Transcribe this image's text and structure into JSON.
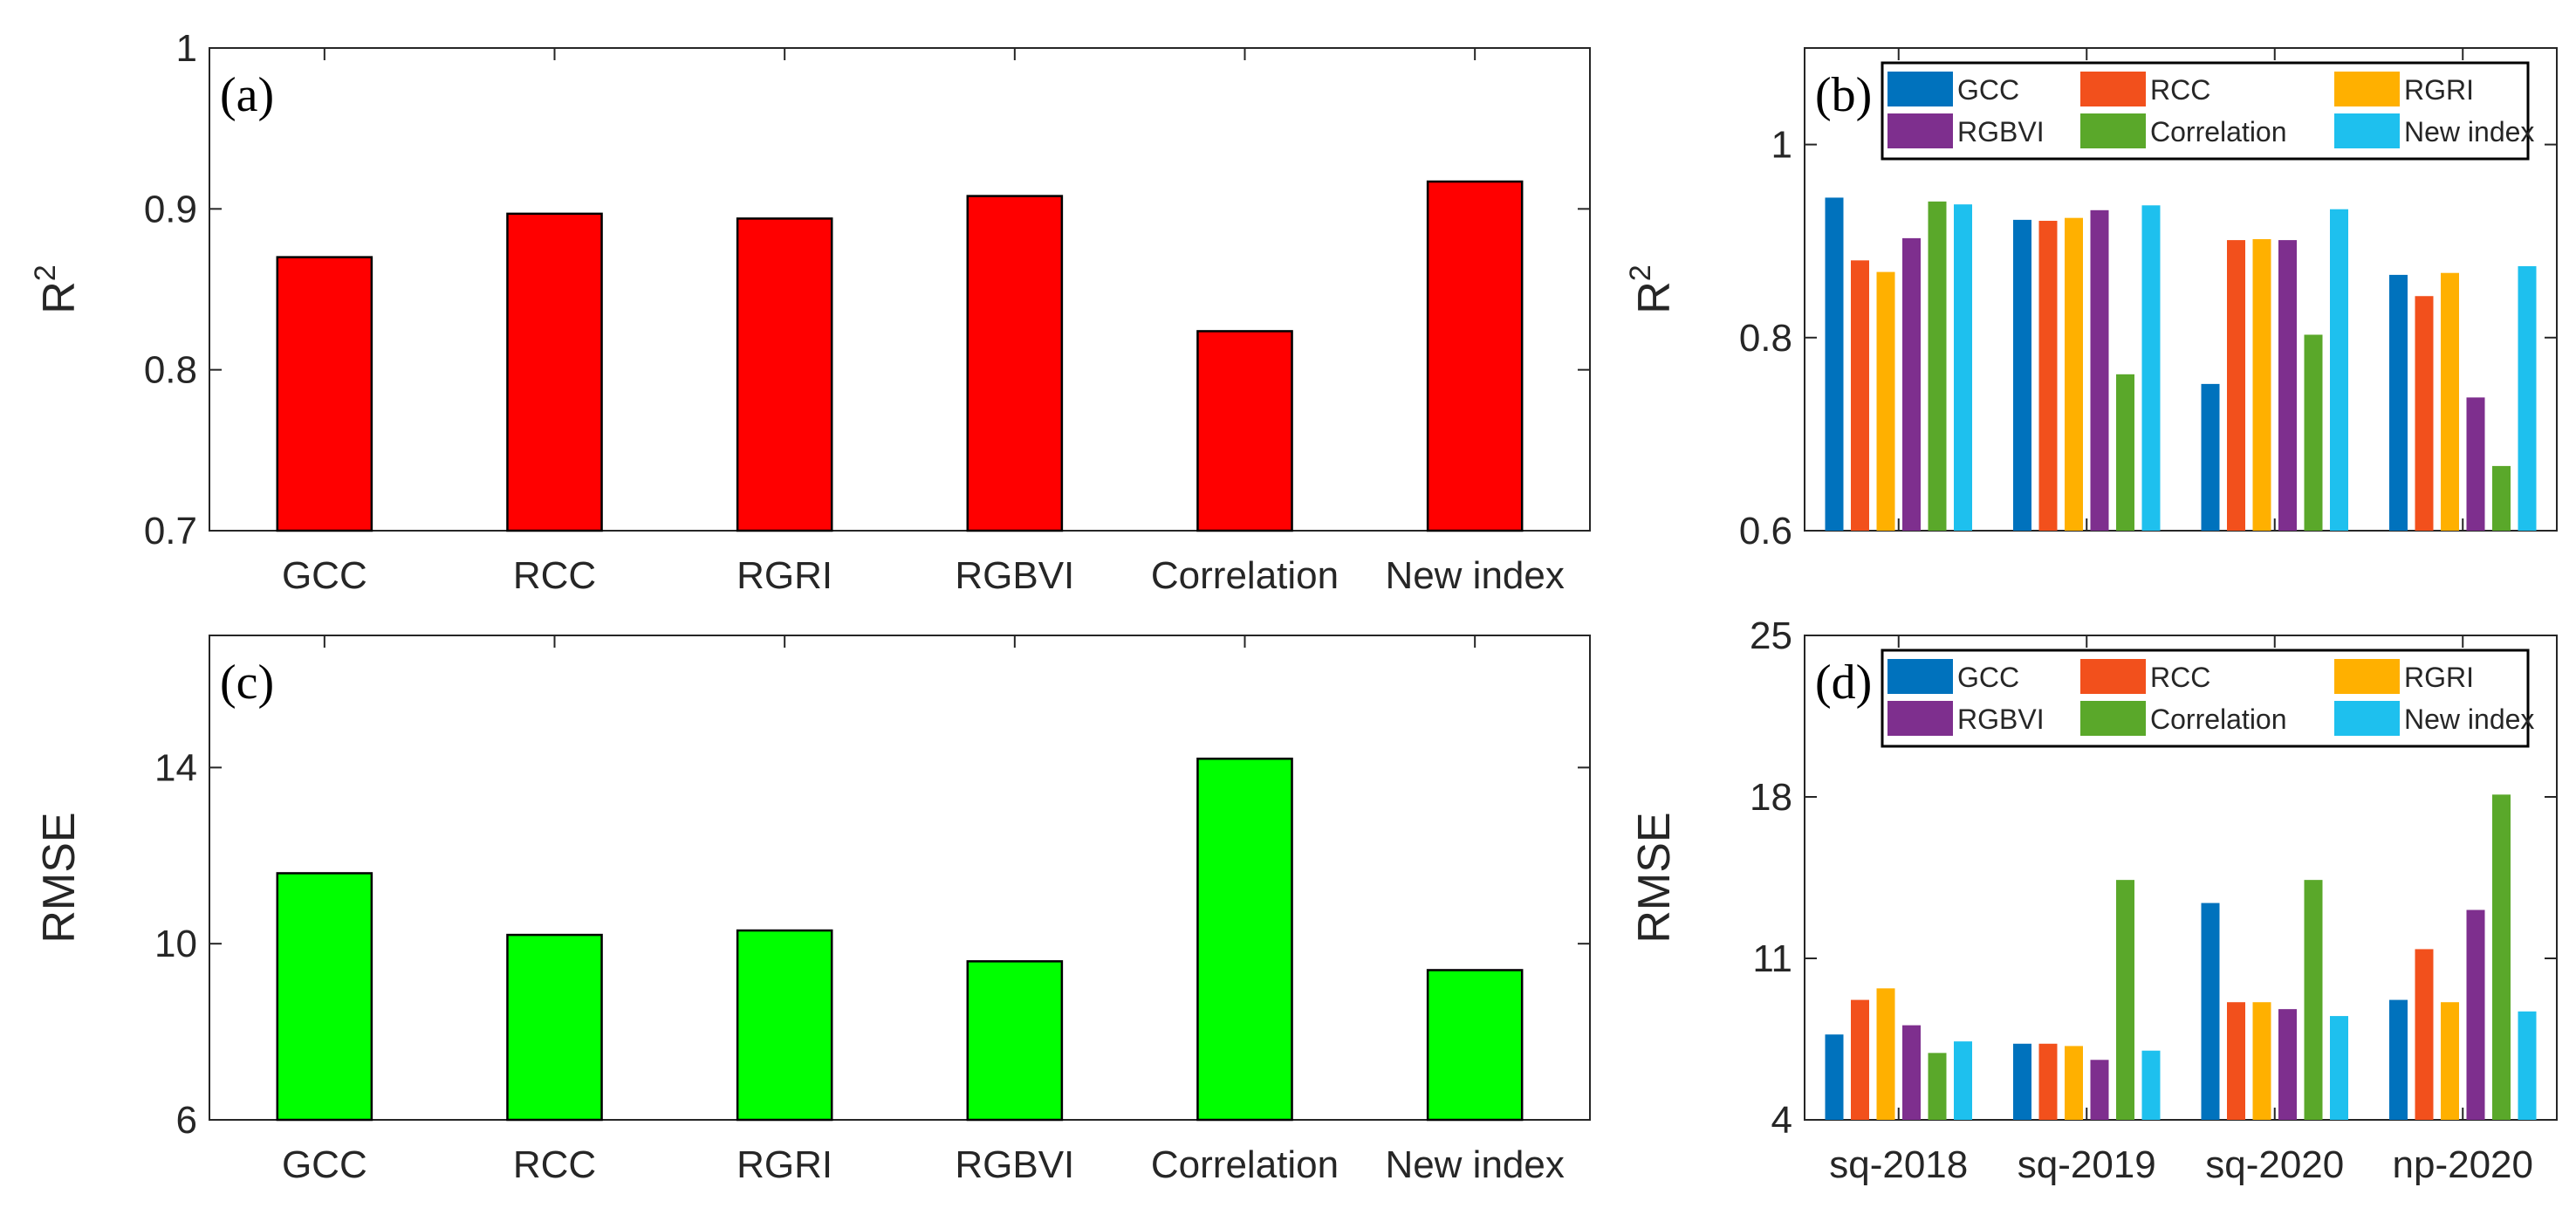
{
  "colors": {
    "panel_a_bar": "#FF0000",
    "panel_c_bar": "#00FF00",
    "series": [
      "#0072BD",
      "#F2501C",
      "#FFB000",
      "#7E2F8E",
      "#5AA82A",
      "#1EC0EE"
    ]
  },
  "chart_data": [
    {
      "id": "a",
      "type": "bar",
      "panel_label": "(a)",
      "categories": [
        "GCC",
        "RCC",
        "RGRI",
        "RGBVI",
        "Correlation",
        "New index"
      ],
      "values": [
        0.87,
        0.897,
        0.894,
        0.908,
        0.824,
        0.917
      ],
      "ylabel_main": "R",
      "ylabel_sup": "2",
      "ylim": [
        0.7,
        1
      ],
      "yticks": [
        0.7,
        0.8,
        0.9,
        1
      ],
      "ytick_labels": [
        "0.7",
        "0.8",
        "0.9",
        "1"
      ]
    },
    {
      "id": "b",
      "type": "bar",
      "panel_label": "(b)",
      "categories": [
        "sq-2018",
        "sq-2019",
        "sq-2020",
        "np-2020"
      ],
      "series": [
        {
          "name": "GCC",
          "values": [
            0.945,
            0.922,
            0.752,
            0.865
          ]
        },
        {
          "name": "RCC",
          "values": [
            0.88,
            0.921,
            0.901,
            0.843
          ]
        },
        {
          "name": "RGRI",
          "values": [
            0.868,
            0.924,
            0.902,
            0.867
          ]
        },
        {
          "name": "RGBVI",
          "values": [
            0.903,
            0.932,
            0.901,
            0.738
          ]
        },
        {
          "name": "Correlation",
          "values": [
            0.941,
            0.762,
            0.803,
            0.667
          ]
        },
        {
          "name": "New index",
          "values": [
            0.938,
            0.937,
            0.933,
            0.874
          ]
        }
      ],
      "ylabel_main": "R",
      "ylabel_sup": "2",
      "ylim": [
        0.6,
        1.1
      ],
      "yticks": [
        0.6,
        0.8,
        1
      ],
      "ytick_labels": [
        "0.6",
        "0.8",
        "1"
      ],
      "show_xticks": false
    },
    {
      "id": "c",
      "type": "bar",
      "panel_label": "(c)",
      "categories": [
        "GCC",
        "RCC",
        "RGRI",
        "RGBVI",
        "Correlation",
        "New index"
      ],
      "values": [
        11.6,
        10.2,
        10.3,
        9.6,
        14.2,
        9.4
      ],
      "ylabel_main": "RMSE",
      "ylim": [
        6,
        17
      ],
      "yticks": [
        6,
        10,
        14
      ],
      "ytick_labels": [
        "6",
        "10",
        "14"
      ]
    },
    {
      "id": "d",
      "type": "bar",
      "panel_label": "(d)",
      "categories": [
        "sq-2018",
        "sq-2019",
        "sq-2020",
        "np-2020"
      ],
      "series": [
        {
          "name": "GCC",
          "values": [
            7.7,
            7.3,
            13.4,
            9.2
          ]
        },
        {
          "name": "RCC",
          "values": [
            9.2,
            7.3,
            9.1,
            11.4
          ]
        },
        {
          "name": "RGRI",
          "values": [
            9.7,
            7.2,
            9.1,
            9.1
          ]
        },
        {
          "name": "RGBVI",
          "values": [
            8.1,
            6.6,
            8.8,
            13.1
          ]
        },
        {
          "name": "Correlation",
          "values": [
            6.9,
            14.4,
            14.4,
            18.1
          ]
        },
        {
          "name": "New index",
          "values": [
            7.4,
            7.0,
            8.5,
            8.7
          ]
        }
      ],
      "ylabel_main": "RMSE",
      "ylim": [
        4,
        25
      ],
      "yticks": [
        4,
        11,
        18,
        25
      ],
      "ytick_labels": [
        "4",
        "11",
        "18",
        "25"
      ],
      "show_xticks": true
    }
  ]
}
